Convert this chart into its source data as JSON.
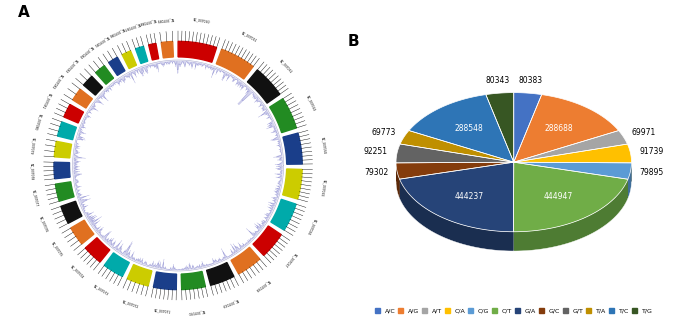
{
  "pie_labels": [
    "A/C",
    "A/G",
    "A/T",
    "C/A",
    "C/G",
    "C/T",
    "G/A",
    "G/C",
    "G/T",
    "T/A",
    "T/C",
    "T/G"
  ],
  "pie_values": [
    80383,
    288688,
    69971,
    91739,
    79895,
    444947,
    444237,
    79302,
    92251,
    69773,
    288548,
    80343
  ],
  "pie_colors": [
    "#4472c4",
    "#ed7d31",
    "#a5a5a5",
    "#ffc000",
    "#5b9bd5",
    "#70ad47",
    "#264478",
    "#843c0c",
    "#636363",
    "#bf8f00",
    "#2e75b6",
    "#375623"
  ],
  "pie_colors_dark": [
    "#2e4f8a",
    "#b55e24",
    "#7a7a7a",
    "#bf8f00",
    "#3f6e99",
    "#4e7c33",
    "#1a2e50",
    "#5c2908",
    "#474747",
    "#8c6800",
    "#1f5280",
    "#243d18"
  ],
  "startangle": 90,
  "legend_labels": [
    "A/C",
    "A/G",
    "A/T",
    "C/A",
    "C/G",
    "C/T",
    "G/A",
    "G/C",
    "G/T",
    "T/A",
    "T/C",
    "T/G"
  ],
  "chr_colors": [
    "#ff0000",
    "#ff7f00",
    "#000000",
    "#00aa00",
    "#0000ff",
    "#ffff00",
    "#00ffff"
  ],
  "label_A": "A",
  "label_B": "B"
}
